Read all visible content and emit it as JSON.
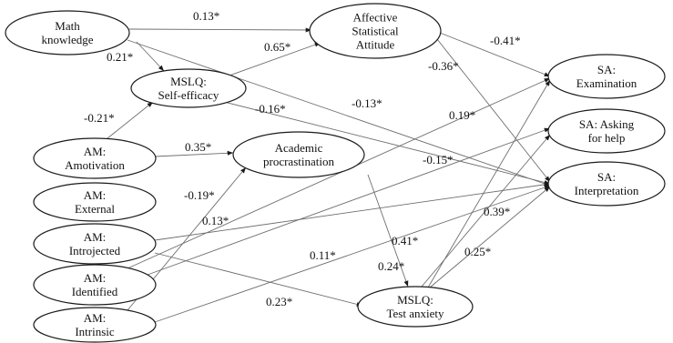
{
  "nodes": [
    {
      "id": "math",
      "lines": [
        "Math",
        "knowledge"
      ]
    },
    {
      "id": "afs",
      "lines": [
        "Affective",
        "Statistical",
        "Attitude"
      ]
    },
    {
      "id": "mslq_se",
      "lines": [
        "MSLQ:",
        "Self-efficacy"
      ]
    },
    {
      "id": "sa_exam",
      "lines": [
        "SA:",
        "Examination"
      ]
    },
    {
      "id": "sa_help",
      "lines": [
        "SA: Asking",
        "for help"
      ]
    },
    {
      "id": "sa_interp",
      "lines": [
        "SA:",
        "Interpretation"
      ]
    },
    {
      "id": "am_amot",
      "lines": [
        "AM:",
        "Amotivation"
      ]
    },
    {
      "id": "acad_proc",
      "lines": [
        "Academic",
        "procrastination"
      ]
    },
    {
      "id": "am_ext",
      "lines": [
        "AM:",
        "External"
      ]
    },
    {
      "id": "am_intro",
      "lines": [
        "AM:",
        "Introjected"
      ]
    },
    {
      "id": "am_ident",
      "lines": [
        "AM:",
        "Identified"
      ]
    },
    {
      "id": "am_intr",
      "lines": [
        "AM:",
        "Intrinsic"
      ]
    },
    {
      "id": "mslq_ta",
      "lines": [
        "MSLQ:",
        "Test anxiety"
      ]
    }
  ],
  "paths": [
    {
      "from": "math",
      "to": "afs",
      "label": "0.13*"
    },
    {
      "from": "math",
      "to": "mslq_se",
      "label": "0.21*"
    },
    {
      "from": "mslq_se",
      "to": "afs",
      "label": "0.65*"
    },
    {
      "from": "afs",
      "to": "sa_exam",
      "label": "-0.41*"
    },
    {
      "from": "afs",
      "to": "sa_interp",
      "label": "-0.36*"
    },
    {
      "from": "mslq_se",
      "to": "sa_interp",
      "label": "-0.16*"
    },
    {
      "from": "math",
      "to": "sa_interp",
      "label": "-0.13*"
    },
    {
      "from": "am_amot",
      "to": "mslq_se",
      "label": "-0.21*"
    },
    {
      "from": "am_amot",
      "to": "acad_proc",
      "label": "0.35*"
    },
    {
      "from": "am_ident",
      "to": "sa_exam",
      "label": "0.19*"
    },
    {
      "from": "am_ident",
      "to": "sa_help",
      "label": "-0.15*"
    },
    {
      "from": "am_intr",
      "to": "acad_proc",
      "label": "-0.19*"
    },
    {
      "from": "am_intro",
      "to": "sa_interp",
      "label": "0.13*"
    },
    {
      "from": "am_intr",
      "to": "sa_interp",
      "label": "0.11*"
    },
    {
      "from": "mslq_ta",
      "to": "sa_interp",
      "label": "0.39*"
    },
    {
      "from": "mslq_ta",
      "to": "sa_exam",
      "label": "0.41*"
    },
    {
      "from": "acad_proc",
      "to": "mslq_ta",
      "label": "0.24*"
    },
    {
      "from": "mslq_ta",
      "to": "sa_help",
      "label": "0.25*"
    },
    {
      "from": "am_intro",
      "to": "mslq_ta",
      "label": "0.23*"
    }
  ]
}
